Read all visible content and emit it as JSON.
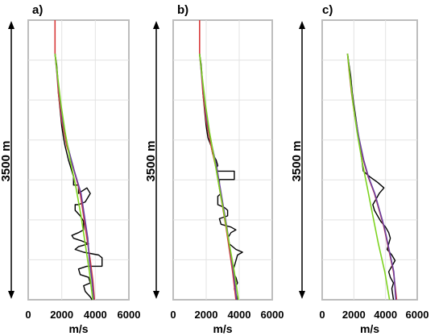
{
  "chart_data": [
    {
      "type": "line",
      "panel_label": "a)",
      "depth_label": "3500 m",
      "xlabel": "m/s",
      "xlim": [
        0,
        6000
      ],
      "xticks": [
        0,
        2000,
        4000,
        6000
      ],
      "ylim": [
        0,
        1
      ],
      "grid": true,
      "series": [
        {
          "color": "#000000",
          "points": [
            [
              1600,
              0
            ],
            [
              1600,
              0.12
            ],
            [
              1700,
              0.16
            ],
            [
              1750,
              0.2
            ],
            [
              1800,
              0.26
            ],
            [
              1900,
              0.32
            ],
            [
              2000,
              0.38
            ],
            [
              2100,
              0.42
            ],
            [
              2200,
              0.45
            ],
            [
              2400,
              0.5
            ],
            [
              2500,
              0.52
            ],
            [
              2600,
              0.54
            ],
            [
              2700,
              0.56
            ],
            [
              2700,
              0.59
            ],
            [
              3000,
              0.59
            ],
            [
              3000,
              0.62
            ],
            [
              3500,
              0.6
            ],
            [
              3600,
              0.61
            ],
            [
              3700,
              0.62
            ],
            [
              3600,
              0.63
            ],
            [
              3400,
              0.65
            ],
            [
              3000,
              0.66
            ],
            [
              2800,
              0.66
            ],
            [
              2800,
              0.68
            ],
            [
              3100,
              0.7
            ],
            [
              3300,
              0.72
            ],
            [
              3300,
              0.75
            ],
            [
              3000,
              0.76
            ],
            [
              2600,
              0.77
            ],
            [
              2700,
              0.78
            ],
            [
              3200,
              0.79
            ],
            [
              3600,
              0.8
            ],
            [
              3000,
              0.81
            ],
            [
              2800,
              0.82
            ],
            [
              3300,
              0.83
            ],
            [
              4200,
              0.84
            ],
            [
              4400,
              0.85
            ],
            [
              4400,
              0.88
            ],
            [
              3500,
              0.88
            ],
            [
              3000,
              0.89
            ],
            [
              3100,
              0.91
            ],
            [
              3600,
              0.92
            ],
            [
              3700,
              0.94
            ],
            [
              3300,
              0.95
            ],
            [
              3400,
              0.97
            ],
            [
              3700,
              0.99
            ],
            [
              3800,
              1.0
            ]
          ]
        },
        {
          "color": "#d83a3a",
          "points": [
            [
              1600,
              0
            ],
            [
              1600,
              0.12
            ],
            [
              1700,
              0.18
            ],
            [
              1800,
              0.26
            ],
            [
              2000,
              0.36
            ],
            [
              2300,
              0.45
            ],
            [
              2700,
              0.53
            ],
            [
              3100,
              0.62
            ],
            [
              3300,
              0.7
            ],
            [
              3500,
              0.78
            ],
            [
              3700,
              0.86
            ],
            [
              3850,
              0.93
            ],
            [
              3950,
              1.0
            ]
          ]
        },
        {
          "color": "#6a3fa0",
          "points": [
            [
              1600,
              0.12
            ],
            [
              1700,
              0.18
            ],
            [
              1850,
              0.26
            ],
            [
              2050,
              0.36
            ],
            [
              2350,
              0.45
            ],
            [
              2750,
              0.54
            ],
            [
              3150,
              0.62
            ],
            [
              3350,
              0.7
            ],
            [
              3550,
              0.78
            ],
            [
              3650,
              0.86
            ],
            [
              3800,
              0.93
            ],
            [
              3900,
              1.0
            ]
          ]
        },
        {
          "color": "#7ed321",
          "points": [
            [
              1600,
              0.12
            ],
            [
              1750,
              0.2
            ],
            [
              1950,
              0.3
            ],
            [
              2200,
              0.4
            ],
            [
              2500,
              0.5
            ],
            [
              2850,
              0.6
            ],
            [
              3150,
              0.7
            ],
            [
              3400,
              0.8
            ],
            [
              3650,
              0.9
            ],
            [
              3850,
              1.0
            ]
          ]
        }
      ]
    },
    {
      "type": "line",
      "panel_label": "b)",
      "depth_label": "3500 m",
      "xlabel": "m/s",
      "xlim": [
        0,
        6000
      ],
      "xticks": [
        0,
        2000,
        4000,
        6000
      ],
      "ylim": [
        0,
        1
      ],
      "grid": true,
      "series": [
        {
          "color": "#000000",
          "points": [
            [
              1600,
              0
            ],
            [
              1600,
              0.12
            ],
            [
              1700,
              0.16
            ],
            [
              1750,
              0.2
            ],
            [
              1800,
              0.26
            ],
            [
              1900,
              0.32
            ],
            [
              2000,
              0.38
            ],
            [
              2100,
              0.42
            ],
            [
              2300,
              0.45
            ],
            [
              2400,
              0.48
            ],
            [
              2600,
              0.5
            ],
            [
              2700,
              0.52
            ],
            [
              2600,
              0.53
            ],
            [
              2700,
              0.54
            ],
            [
              3700,
              0.54
            ],
            [
              3700,
              0.57
            ],
            [
              2800,
              0.57
            ],
            [
              2800,
              0.6
            ],
            [
              2900,
              0.62
            ],
            [
              2700,
              0.63
            ],
            [
              2700,
              0.66
            ],
            [
              3100,
              0.67
            ],
            [
              3300,
              0.68
            ],
            [
              3300,
              0.7
            ],
            [
              2800,
              0.71
            ],
            [
              2900,
              0.73
            ],
            [
              3500,
              0.74
            ],
            [
              3800,
              0.75
            ],
            [
              3500,
              0.76
            ],
            [
              3300,
              0.78
            ],
            [
              3400,
              0.8
            ],
            [
              3800,
              0.82
            ],
            [
              4200,
              0.83
            ],
            [
              3900,
              0.84
            ],
            [
              3800,
              0.86
            ],
            [
              3700,
              0.88
            ],
            [
              3600,
              0.9
            ],
            [
              3800,
              0.92
            ],
            [
              3900,
              0.94
            ],
            [
              3700,
              0.96
            ],
            [
              3800,
              0.98
            ],
            [
              3900,
              1.0
            ]
          ]
        },
        {
          "color": "#d83a3a",
          "points": [
            [
              1600,
              0
            ],
            [
              1600,
              0.12
            ],
            [
              1700,
              0.18
            ],
            [
              1800,
              0.26
            ],
            [
              2000,
              0.36
            ],
            [
              2300,
              0.45
            ],
            [
              2600,
              0.53
            ],
            [
              2800,
              0.6
            ],
            [
              3000,
              0.67
            ],
            [
              3200,
              0.74
            ],
            [
              3400,
              0.82
            ],
            [
              3600,
              0.9
            ],
            [
              3800,
              1.0
            ]
          ]
        },
        {
          "color": "#6a3fa0",
          "points": [
            [
              1600,
              0.12
            ],
            [
              1700,
              0.18
            ],
            [
              1850,
              0.26
            ],
            [
              2050,
              0.36
            ],
            [
              2350,
              0.45
            ],
            [
              2650,
              0.53
            ],
            [
              2850,
              0.6
            ],
            [
              3050,
              0.67
            ],
            [
              3250,
              0.74
            ],
            [
              3450,
              0.82
            ],
            [
              3650,
              0.9
            ],
            [
              3850,
              1.0
            ]
          ]
        },
        {
          "color": "#7ed321",
          "points": [
            [
              1600,
              0.12
            ],
            [
              1750,
              0.2
            ],
            [
              1950,
              0.3
            ],
            [
              2200,
              0.4
            ],
            [
              2500,
              0.5
            ],
            [
              2800,
              0.6
            ],
            [
              3100,
              0.7
            ],
            [
              3400,
              0.8
            ],
            [
              3700,
              0.9
            ],
            [
              3950,
              1.0
            ]
          ]
        }
      ]
    },
    {
      "type": "line",
      "panel_label": "c)",
      "depth_label": "3500 m",
      "xlabel": "m/s",
      "xlim": [
        0,
        6000
      ],
      "xticks": [
        0,
        2000,
        4000,
        6000
      ],
      "ylim": [
        0,
        1
      ],
      "grid": true,
      "series": [
        {
          "color": "#000000",
          "points": [
            [
              1600,
              0.12
            ],
            [
              1700,
              0.16
            ],
            [
              1800,
              0.2
            ],
            [
              1900,
              0.26
            ],
            [
              2000,
              0.3
            ],
            [
              2100,
              0.34
            ],
            [
              2200,
              0.38
            ],
            [
              2300,
              0.42
            ],
            [
              2400,
              0.46
            ],
            [
              2500,
              0.5
            ],
            [
              2600,
              0.54
            ],
            [
              3000,
              0.56
            ],
            [
              3500,
              0.58
            ],
            [
              3900,
              0.6
            ],
            [
              3600,
              0.62
            ],
            [
              3400,
              0.64
            ],
            [
              3200,
              0.66
            ],
            [
              3300,
              0.68
            ],
            [
              3500,
              0.7
            ],
            [
              3700,
              0.72
            ],
            [
              4000,
              0.74
            ],
            [
              4200,
              0.76
            ],
            [
              4300,
              0.78
            ],
            [
              4200,
              0.8
            ],
            [
              4100,
              0.82
            ],
            [
              4400,
              0.84
            ],
            [
              4600,
              0.86
            ],
            [
              4400,
              0.88
            ],
            [
              4200,
              0.9
            ],
            [
              4300,
              0.92
            ],
            [
              4500,
              0.94
            ],
            [
              4400,
              0.96
            ],
            [
              4500,
              1.0
            ]
          ]
        },
        {
          "color": "#d83a3a",
          "points": [
            [
              1600,
              0.12
            ],
            [
              1700,
              0.18
            ],
            [
              1850,
              0.26
            ],
            [
              2050,
              0.34
            ],
            [
              2300,
              0.42
            ],
            [
              2600,
              0.5
            ],
            [
              2900,
              0.56
            ],
            [
              3300,
              0.62
            ],
            [
              3600,
              0.68
            ],
            [
              3900,
              0.74
            ],
            [
              4200,
              0.82
            ],
            [
              4500,
              0.9
            ],
            [
              4700,
              1.0
            ]
          ]
        },
        {
          "color": "#6a3fa0",
          "points": [
            [
              1600,
              0.12
            ],
            [
              1720,
              0.18
            ],
            [
              1870,
              0.26
            ],
            [
              2070,
              0.34
            ],
            [
              2320,
              0.42
            ],
            [
              2620,
              0.5
            ],
            [
              2920,
              0.56
            ],
            [
              3320,
              0.62
            ],
            [
              3620,
              0.68
            ],
            [
              3920,
              0.74
            ],
            [
              4220,
              0.82
            ],
            [
              4520,
              0.9
            ],
            [
              4650,
              1.0
            ]
          ]
        },
        {
          "color": "#7ed321",
          "points": [
            [
              1600,
              0.12
            ],
            [
              1750,
              0.2
            ],
            [
              1950,
              0.3
            ],
            [
              2200,
              0.4
            ],
            [
              2500,
              0.5
            ],
            [
              2850,
              0.6
            ],
            [
              3200,
              0.7
            ],
            [
              3550,
              0.8
            ],
            [
              3950,
              0.9
            ],
            [
              4250,
              1.0
            ]
          ]
        }
      ]
    }
  ]
}
